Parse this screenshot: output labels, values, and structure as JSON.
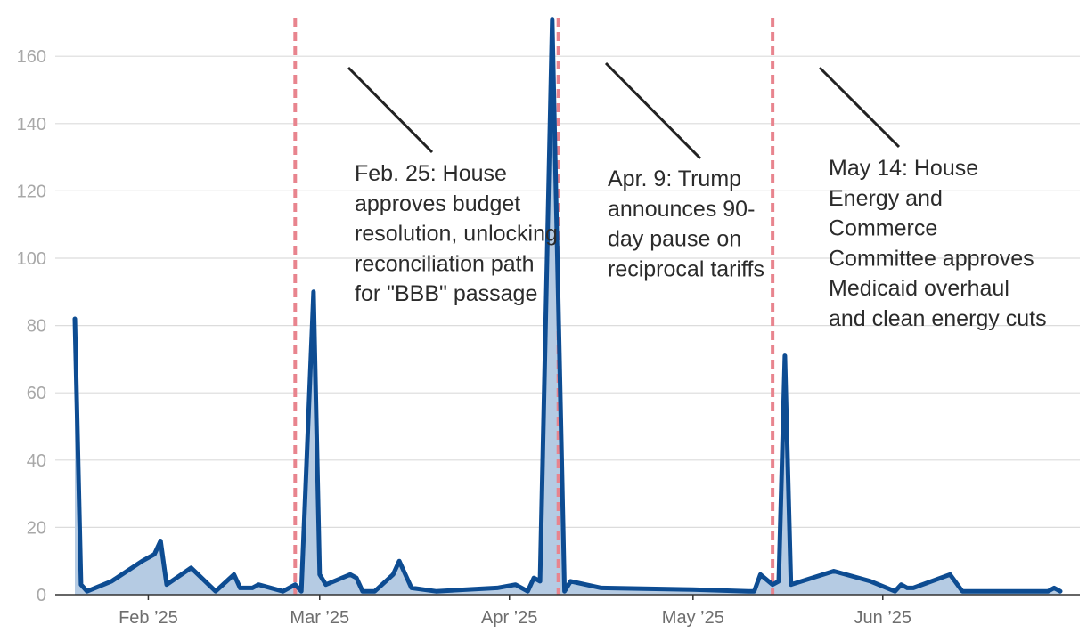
{
  "chart_data": {
    "type": "area",
    "title": "",
    "xlabel": "",
    "ylabel": "",
    "ylim": [
      0,
      170
    ],
    "xlim": [
      "2025-01-18",
      "2025-06-30"
    ],
    "y_ticks": [
      0,
      20,
      40,
      60,
      80,
      100,
      120,
      140,
      160
    ],
    "x_ticks": [
      {
        "date": "2025-02-01",
        "label": "Feb ’25"
      },
      {
        "date": "2025-03-01",
        "label": "Mar ’25"
      },
      {
        "date": "2025-04-01",
        "label": "Apr ’25"
      },
      {
        "date": "2025-05-01",
        "label": "May ’25"
      },
      {
        "date": "2025-06-01",
        "label": "Jun ’25"
      }
    ],
    "grid": true,
    "series": [
      {
        "color": "#0d4c92",
        "fill_color": "#b5cbe3",
        "points": [
          [
            "2025-01-20",
            82
          ],
          [
            "2025-01-21",
            3
          ],
          [
            "2025-01-22",
            1
          ],
          [
            "2025-01-26",
            4
          ],
          [
            "2025-01-31",
            10
          ],
          [
            "2025-02-02",
            12
          ],
          [
            "2025-02-03",
            16
          ],
          [
            "2025-02-04",
            3
          ],
          [
            "2025-02-08",
            8
          ],
          [
            "2025-02-12",
            1
          ],
          [
            "2025-02-15",
            6
          ],
          [
            "2025-02-16",
            2
          ],
          [
            "2025-02-18",
            2
          ],
          [
            "2025-02-19",
            3
          ],
          [
            "2025-02-23",
            1
          ],
          [
            "2025-02-25",
            3
          ],
          [
            "2025-02-26",
            1
          ],
          [
            "2025-02-28",
            90
          ],
          [
            "2025-03-01",
            6
          ],
          [
            "2025-03-02",
            3
          ],
          [
            "2025-03-06",
            6
          ],
          [
            "2025-03-07",
            5
          ],
          [
            "2025-03-08",
            1
          ],
          [
            "2025-03-10",
            1
          ],
          [
            "2025-03-13",
            6
          ],
          [
            "2025-03-14",
            10
          ],
          [
            "2025-03-16",
            2
          ],
          [
            "2025-03-20",
            1
          ],
          [
            "2025-03-30",
            2
          ],
          [
            "2025-04-02",
            3
          ],
          [
            "2025-04-04",
            1
          ],
          [
            "2025-04-05",
            5
          ],
          [
            "2025-04-06",
            4
          ],
          [
            "2025-04-08",
            171
          ],
          [
            "2025-04-10",
            1
          ],
          [
            "2025-04-11",
            4
          ],
          [
            "2025-04-16",
            2
          ],
          [
            "2025-05-01",
            1.5
          ],
          [
            "2025-05-10",
            1
          ],
          [
            "2025-05-11",
            1
          ],
          [
            "2025-05-12",
            6
          ],
          [
            "2025-05-14",
            3
          ],
          [
            "2025-05-15",
            4
          ],
          [
            "2025-05-16",
            71
          ],
          [
            "2025-05-17",
            3
          ],
          [
            "2025-05-24",
            7
          ],
          [
            "2025-05-30",
            4
          ],
          [
            "2025-06-03",
            1
          ],
          [
            "2025-06-04",
            3
          ],
          [
            "2025-06-05",
            2
          ],
          [
            "2025-06-06",
            2
          ],
          [
            "2025-06-12",
            6
          ],
          [
            "2025-06-14",
            1
          ],
          [
            "2025-06-28",
            1
          ],
          [
            "2025-06-29",
            2
          ],
          [
            "2025-06-30",
            1
          ]
        ]
      }
    ],
    "events": [
      {
        "date": "2025-02-25",
        "label_lines": [
          "Feb. 25: House",
          "approves budget",
          "resolution, unlocking",
          "reconciliation path",
          "for \"BBB\" passage"
        ]
      },
      {
        "date": "2025-04-09",
        "label_lines": [
          "Apr. 9: Trump",
          "announces 90-",
          "day pause on",
          "reciprocal tariffs"
        ]
      },
      {
        "date": "2025-05-14",
        "label_lines": [
          "May 14: House",
          "Energy and",
          "Commerce",
          "Committee approves",
          "Medicaid overhaul",
          "and clean energy cuts"
        ]
      }
    ],
    "colors": {
      "line": "#0d4c92",
      "area": "#b5cbe3",
      "event_line": "#e8848e",
      "grid": "#dcdcdc",
      "axis": "#333333",
      "leader": "#222222"
    }
  }
}
